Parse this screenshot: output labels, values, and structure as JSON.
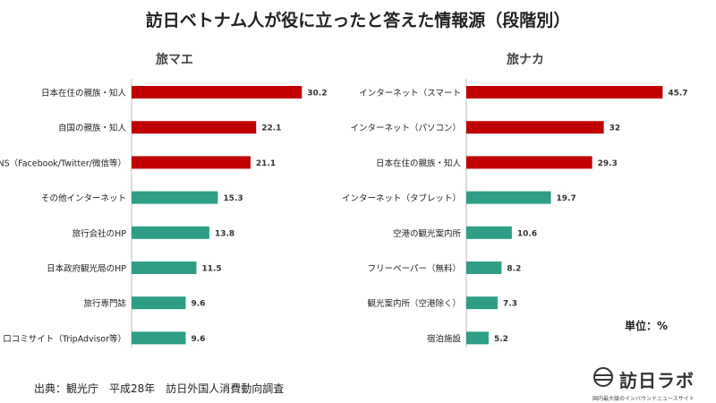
{
  "header": {
    "title": "訪日ベトナム人が役に立ったと答えた情報源（段階別）"
  },
  "footer": {
    "unit": "単位：%",
    "source": "出典：観光庁　平成28年　訪日外国人消費動向調査",
    "brand_name": "訪日ラボ",
    "brand_tagline": "国内最大級のインバウンドニュースサイト"
  },
  "colors": {
    "red": "#c00000",
    "teal": "#2e9e86"
  },
  "chart_data": [
    {
      "type": "bar",
      "orientation": "horizontal",
      "title": "旅マエ",
      "categories": [
        "日本在住の親族・知人",
        "自国の親族・知人",
        "SNS（Facebook/Twitter/微信等）",
        "その他インターネット",
        "旅行会社のHP",
        "日本政府観光局のHP",
        "旅行専門誌",
        "口コミサイト（TripAdvisor等）"
      ],
      "values": [
        30.2,
        22.1,
        21.1,
        15.3,
        13.8,
        11.5,
        9.6,
        9.6
      ],
      "value_labels": [
        "30.2",
        "22.1",
        "21.1",
        "15.3",
        "13.8",
        "11.5",
        "9.6",
        "9.6"
      ],
      "bar_colors": [
        "red",
        "red",
        "red",
        "teal",
        "teal",
        "teal",
        "teal",
        "teal"
      ],
      "xlim": [
        0,
        46
      ]
    },
    {
      "type": "bar",
      "orientation": "horizontal",
      "title": "旅ナカ",
      "categories": [
        "インターネット（スマート",
        "インターネット（パソコン）",
        "日本在住の親族・知人",
        "インターネット（タブレット）",
        "空港の観光案内所",
        "フリーペーパー（無料）",
        "観光案内所（空港除く）",
        "宿泊施設"
      ],
      "values": [
        45.7,
        32,
        29.3,
        19.7,
        10.6,
        8.2,
        7.3,
        5.2
      ],
      "value_labels": [
        "45.7",
        "32",
        "29.3",
        "19.7",
        "10.6",
        "8.2",
        "7.3",
        "5.2"
      ],
      "bar_colors": [
        "red",
        "red",
        "red",
        "teal",
        "teal",
        "teal",
        "teal",
        "teal"
      ],
      "xlim": [
        0,
        46
      ]
    }
  ]
}
